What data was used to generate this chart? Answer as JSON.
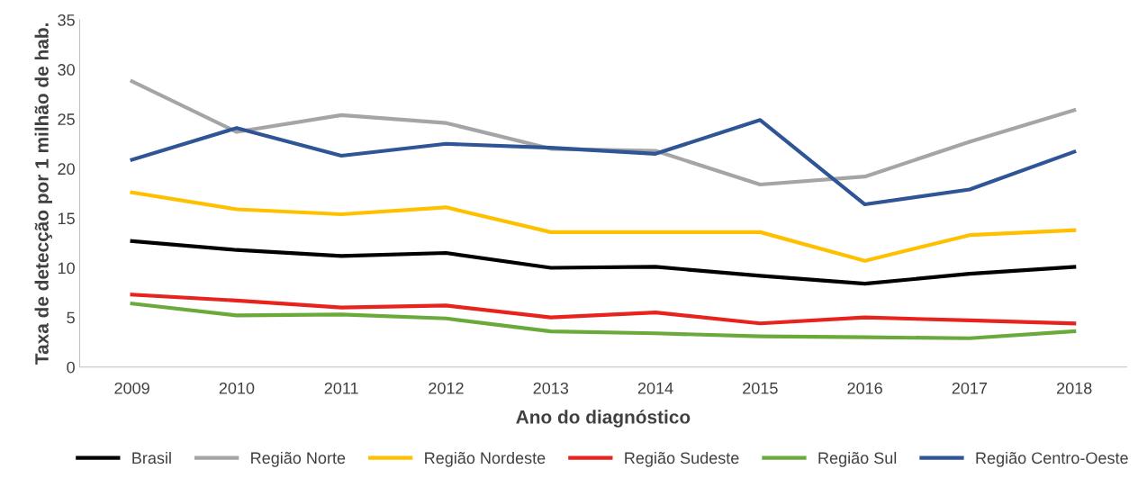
{
  "chart_data": {
    "type": "line",
    "xlabel": "Ano do diagnóstico",
    "ylabel": "Taxa de detecção por 1 milhão de hab.",
    "categories": [
      "2009",
      "2010",
      "2011",
      "2012",
      "2013",
      "2014",
      "2015",
      "2016",
      "2017",
      "2018"
    ],
    "ylim": [
      0,
      35
    ],
    "yticks": [
      0,
      5,
      10,
      15,
      20,
      25,
      30,
      35
    ],
    "grid": false,
    "legend": "bottom",
    "marker": "none",
    "line_style": "solid",
    "series": [
      {
        "name": "Brasil",
        "color": "#000000",
        "values": [
          12.7,
          11.8,
          11.2,
          11.5,
          10.0,
          10.1,
          9.2,
          8.4,
          9.4,
          10.1
        ]
      },
      {
        "name": "Região Norte",
        "color": "#a5a5a5",
        "values": [
          28.8,
          23.7,
          25.4,
          24.6,
          22.0,
          21.8,
          18.4,
          19.2,
          22.7,
          25.9
        ]
      },
      {
        "name": "Região Nordeste",
        "color": "#ffc000",
        "values": [
          17.6,
          15.9,
          15.4,
          16.1,
          13.6,
          13.6,
          13.6,
          10.7,
          13.3,
          13.8
        ]
      },
      {
        "name": "Região Sudeste",
        "color": "#e8231e",
        "values": [
          7.3,
          6.7,
          6.0,
          6.2,
          5.0,
          5.5,
          4.4,
          5.0,
          4.7,
          4.4
        ]
      },
      {
        "name": "Região Sul",
        "color": "#6aaa3a",
        "values": [
          6.4,
          5.2,
          5.3,
          4.9,
          3.6,
          3.4,
          3.1,
          3.0,
          2.9,
          3.6
        ]
      },
      {
        "name": "Região Centro-Oeste",
        "color": "#2f5597",
        "values": [
          20.9,
          24.1,
          21.3,
          22.5,
          22.1,
          21.5,
          24.9,
          16.4,
          17.9,
          21.7
        ]
      }
    ]
  }
}
